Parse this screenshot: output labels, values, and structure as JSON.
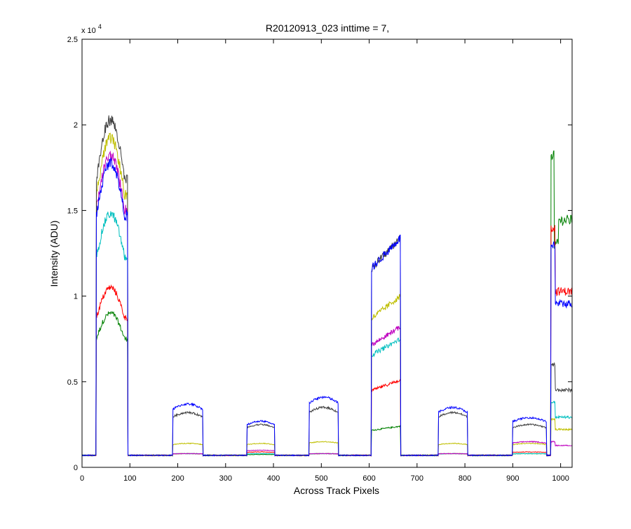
{
  "chart_data": {
    "type": "line",
    "title": "R20120913_023 inttime = 7,",
    "xlabel": "Across Track Pixels",
    "ylabel": "Intensity (ADU)",
    "y_exponent_label": "x 10",
    "y_exponent": "4",
    "xlim": [
      0,
      1024
    ],
    "ylim": [
      0,
      25000
    ],
    "xticks": [
      0,
      100,
      200,
      300,
      400,
      500,
      600,
      700,
      800,
      900,
      1000
    ],
    "yticks": [
      0,
      5000,
      10000,
      15000,
      20000,
      25000
    ],
    "ytick_labels": [
      "0",
      "0.5",
      "1",
      "1.5",
      "2",
      "2.5"
    ],
    "grid": false,
    "legend": "none",
    "baseline": 700,
    "bands": [
      {
        "start": 30,
        "end": 95
      },
      {
        "start": 190,
        "end": 252
      },
      {
        "start": 345,
        "end": 402
      },
      {
        "start": 475,
        "end": 535
      },
      {
        "start": 605,
        "end": 665
      },
      {
        "start": 745,
        "end": 805
      },
      {
        "start": 900,
        "end": 970
      },
      {
        "start": 980,
        "end": 1024
      }
    ],
    "series": [
      {
        "color": "#008000",
        "peaks": [
          9000,
          800,
          750,
          800,
          2400,
          800,
          800,
          18300
        ],
        "shape": "green"
      },
      {
        "color": "#ff0000",
        "peaks": [
          10500,
          800,
          900,
          800,
          5100,
          800,
          900,
          14000
        ],
        "shape": "red"
      },
      {
        "color": "#00bfbf",
        "peaks": [
          14800,
          800,
          800,
          800,
          7500,
          800,
          800,
          3800
        ],
        "shape": "cyan"
      },
      {
        "color": "#bf00bf",
        "peaks": [
          18200,
          800,
          1000,
          800,
          8200,
          800,
          1500,
          1500
        ],
        "shape": "magenta"
      },
      {
        "color": "#bfbf00",
        "peaks": [
          19200,
          1400,
          1400,
          1500,
          10000,
          1400,
          1400,
          2800
        ],
        "shape": "olive"
      },
      {
        "color": "#404040",
        "peaks": [
          20300,
          3200,
          2500,
          3500,
          13400,
          3200,
          2500,
          6000
        ],
        "shape": "black"
      },
      {
        "color": "#0000ff",
        "peaks": [
          17800,
          3700,
          2700,
          4100,
          13400,
          3500,
          2900,
          13000
        ],
        "shape": "blue"
      }
    ]
  }
}
